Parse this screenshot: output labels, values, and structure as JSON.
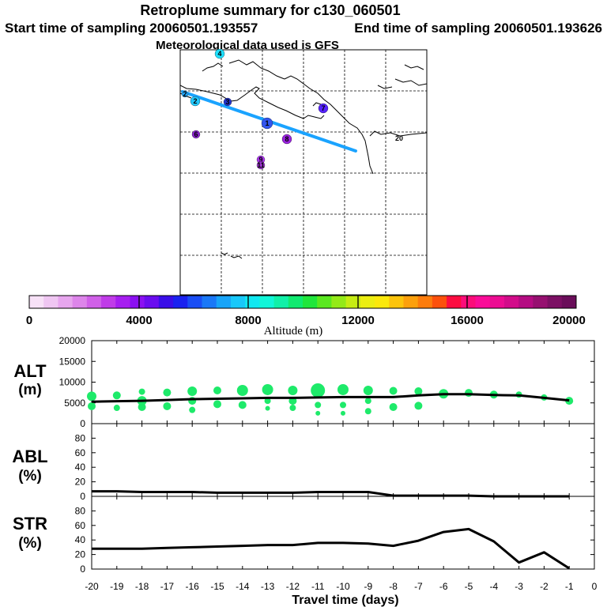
{
  "header": {
    "title": "Retroplume summary for c130_060501",
    "start": "Start time of sampling 20060501.193557",
    "end": "End time of sampling 20060501.193626",
    "met": "Meteorological data used is GFS"
  },
  "map": {
    "trajectory_color": "#1aa3ff",
    "points": [
      {
        "label": "4",
        "color": "#1fe0ff"
      },
      {
        "label": "2",
        "color": "#22c8ff"
      },
      {
        "label": "3",
        "color": "#2233cc"
      },
      {
        "label": "2",
        "color": "#22aaff"
      },
      {
        "label": "1",
        "color": "#3355ee"
      },
      {
        "label": "7",
        "color": "#5522ff"
      },
      {
        "label": "6",
        "color": "#8822cc"
      },
      {
        "label": "8",
        "color": "#9922dd"
      },
      {
        "label": "9",
        "color": "#aa33ee"
      },
      {
        "label": "11",
        "color": "#9933cc"
      },
      {
        "label": "20",
        "color": "#ffffff"
      }
    ]
  },
  "colorbar": {
    "ticks": [
      "0",
      "4000",
      "8000",
      "12000",
      "16000",
      "20000"
    ],
    "label": "Altitude (m)",
    "colors": [
      "#f7e1f7",
      "#efc6f2",
      "#e7a6ee",
      "#dd85ea",
      "#d060e8",
      "#c03ce8",
      "#a61ef0",
      "#8b10f2",
      "#6a0cef",
      "#3a0ee8",
      "#1a22f0",
      "#1a4ef5",
      "#1a78f7",
      "#18a4f8",
      "#18c8fa",
      "#10e8f0",
      "#10f6d8",
      "#10f0a8",
      "#10ea70",
      "#20e63c",
      "#5ae820",
      "#94ea18",
      "#c6ec14",
      "#ecee12",
      "#fbe80c",
      "#fcc40c",
      "#fca00c",
      "#fc7c0c",
      "#fc500c",
      "#fc0c40",
      "#fc0c7a",
      "#fa0c98",
      "#ec0c92",
      "#d20c8a",
      "#b40c82",
      "#961070",
      "#7c1064",
      "#6a0e5a"
    ]
  },
  "chart_data": [
    {
      "type": "line",
      "name": "alt",
      "title": "ALT",
      "ylabel": "(m)",
      "xlim": [
        -20,
        0
      ],
      "ylim": [
        0,
        20000
      ],
      "y_ticks": [
        "20000",
        "15000",
        "10000",
        "5000",
        "0"
      ],
      "x": [
        -20,
        -19,
        -18,
        -17,
        -16,
        -15,
        -14,
        -13,
        -12,
        -11,
        -10,
        -9,
        -8,
        -7,
        -6,
        -5,
        -4,
        -3,
        -2,
        -1
      ],
      "series": [
        {
          "name": "median altitude",
          "values": [
            5300,
            5400,
            5500,
            5700,
            5900,
            6000,
            6100,
            6200,
            6200,
            6300,
            6400,
            6400,
            6400,
            6800,
            7100,
            7100,
            6900,
            6800,
            6200,
            5600
          ]
        }
      ],
      "scatter": {
        "color": "#1eea6a",
        "points": [
          [
            -20,
            6600,
            6
          ],
          [
            -20,
            4200,
            5
          ],
          [
            -19,
            6800,
            5
          ],
          [
            -19,
            3800,
            4
          ],
          [
            -18,
            7700,
            4
          ],
          [
            -18,
            5500,
            6
          ],
          [
            -18,
            4000,
            5
          ],
          [
            -17,
            7500,
            5
          ],
          [
            -17,
            4200,
            5
          ],
          [
            -16,
            7800,
            6
          ],
          [
            -16,
            5500,
            5
          ],
          [
            -16,
            3300,
            4
          ],
          [
            -15,
            8000,
            5
          ],
          [
            -15,
            4700,
            5
          ],
          [
            -14,
            8000,
            7
          ],
          [
            -14,
            4500,
            5
          ],
          [
            -13,
            8200,
            7
          ],
          [
            -13,
            5500,
            4
          ],
          [
            -13,
            3700,
            3
          ],
          [
            -12,
            8000,
            6
          ],
          [
            -12,
            5500,
            5
          ],
          [
            -12,
            3800,
            4
          ],
          [
            -11,
            8000,
            9
          ],
          [
            -11,
            4500,
            4
          ],
          [
            -11,
            2500,
            3
          ],
          [
            -10,
            8200,
            7
          ],
          [
            -10,
            4500,
            4
          ],
          [
            -10,
            2500,
            3
          ],
          [
            -9,
            8000,
            6
          ],
          [
            -9,
            5500,
            4
          ],
          [
            -9,
            3000,
            4
          ],
          [
            -8,
            7900,
            5
          ],
          [
            -8,
            4000,
            5
          ],
          [
            -7,
            7800,
            5
          ],
          [
            -7,
            4300,
            5
          ],
          [
            -6,
            7200,
            6
          ],
          [
            -5,
            7400,
            5
          ],
          [
            -4,
            7000,
            5
          ],
          [
            -3,
            7000,
            4
          ],
          [
            -2,
            6300,
            4
          ],
          [
            -1,
            5500,
            5
          ]
        ]
      }
    },
    {
      "type": "line",
      "name": "abl",
      "title": "ABL",
      "ylabel": "(%)",
      "xlim": [
        -20,
        0
      ],
      "ylim": [
        0,
        100
      ],
      "y_ticks": [
        "80",
        "60",
        "40",
        "20",
        "0"
      ],
      "x": [
        -20,
        -19,
        -18,
        -17,
        -16,
        -15,
        -14,
        -13,
        -12,
        -11,
        -10,
        -9,
        -8,
        -7,
        -6,
        -5,
        -4,
        -3,
        -2,
        -1
      ],
      "series": [
        {
          "name": "ABL fraction",
          "values": [
            7,
            7,
            6,
            6,
            6,
            5,
            5,
            5,
            5,
            6,
            6,
            6,
            1,
            1,
            1,
            1,
            0,
            0,
            0,
            0
          ]
        }
      ]
    },
    {
      "type": "line",
      "name": "str",
      "title": "STR",
      "ylabel": "(%)",
      "xlim": [
        -20,
        0
      ],
      "ylim": [
        0,
        100
      ],
      "y_ticks": [
        "80",
        "60",
        "40",
        "20",
        "0"
      ],
      "x": [
        -20,
        -19,
        -18,
        -17,
        -16,
        -15,
        -14,
        -13,
        -12,
        -11,
        -10,
        -9,
        -8,
        -7,
        -6,
        -5,
        -4,
        -3,
        -2,
        -1
      ],
      "x_tick_labels": [
        "-20",
        "-19",
        "-18",
        "-17",
        "-16",
        "-15",
        "-14",
        "-13",
        "-12",
        "-11",
        "-10",
        "-9",
        "-8",
        "-7",
        "-6",
        "-5",
        "-4",
        "-3",
        "-2",
        "-1",
        "0"
      ],
      "xlabel": "Travel time (days)",
      "series": [
        {
          "name": "stratospheric fraction",
          "values": [
            28,
            28,
            28,
            29,
            30,
            31,
            32,
            33,
            33,
            36,
            36,
            35,
            32,
            39,
            51,
            55,
            38,
            9,
            23,
            1
          ]
        }
      ]
    }
  ]
}
